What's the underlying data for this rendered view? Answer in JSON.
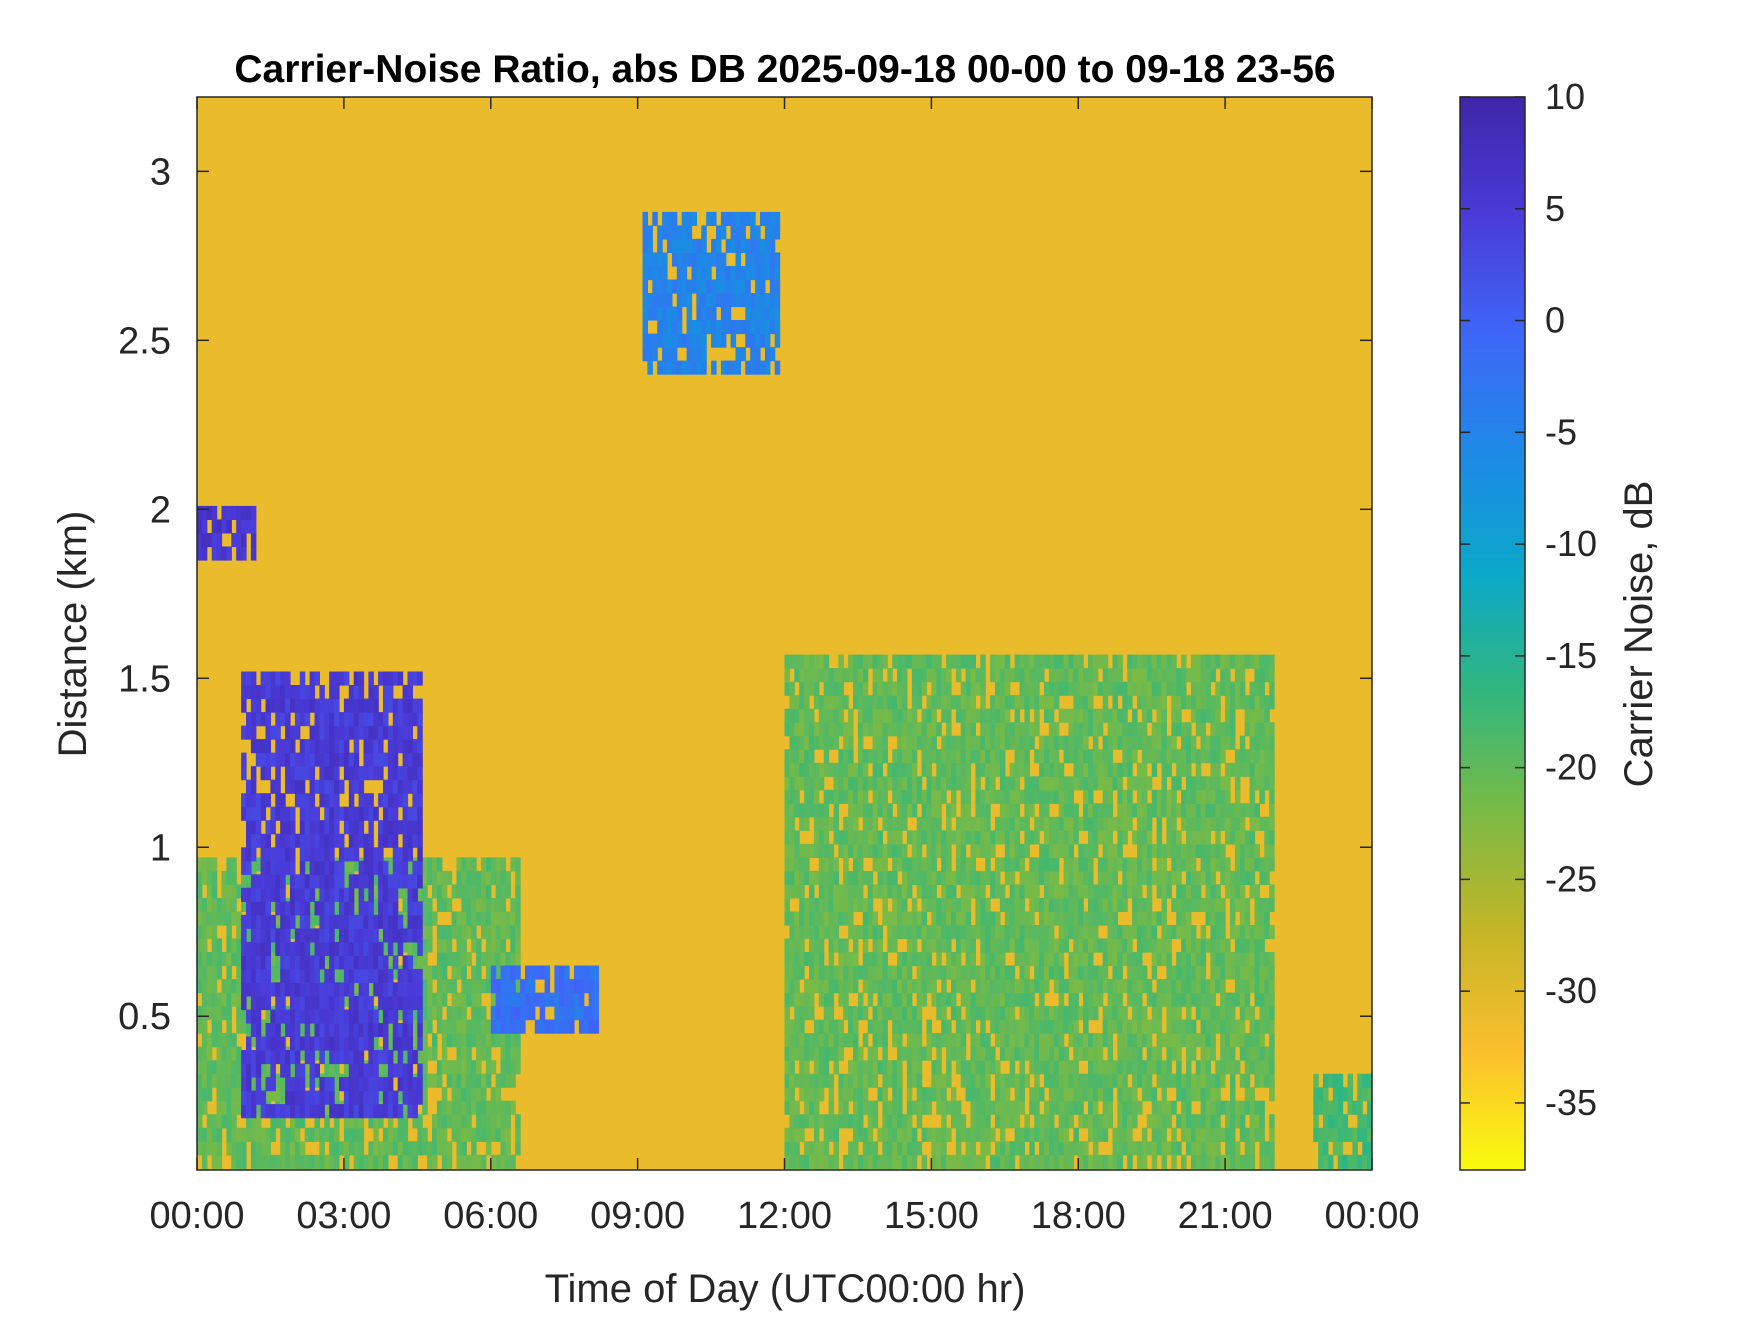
{
  "chart_data": {
    "type": "heatmap",
    "title": "Carrier-Noise Ratio, abs DB 2025-09-18 00-00 to 09-18 23-56",
    "xlabel": "Time of Day (UTC00:00 hr)",
    "ylabel": "Distance (km)",
    "x_ticks": [
      "00:00",
      "03:00",
      "06:00",
      "09:00",
      "12:00",
      "15:00",
      "18:00",
      "21:00",
      "00:00"
    ],
    "x_range_hours": [
      0,
      24
    ],
    "y_ticks": [
      0.5,
      1,
      1.5,
      2,
      2.5,
      3
    ],
    "y_tick_labels": [
      "0.5",
      "1",
      "1.5",
      "2",
      "2.5",
      "3"
    ],
    "y_range_km": [
      0.045,
      3.22
    ],
    "colorbar": {
      "label": "Carrier Noise, dB",
      "range": [
        -38,
        10
      ],
      "ticks": [
        10,
        5,
        0,
        -5,
        -10,
        -15,
        -20,
        -25,
        -30,
        -35
      ],
      "tick_labels": [
        "10",
        "5",
        "0",
        "-5",
        "-10",
        "-15",
        "-20",
        "-25",
        "-30",
        "-35"
      ],
      "colormap": "parula",
      "colors": [
        "#f9fb0e",
        "#fbbf2e",
        "#c5b526",
        "#7bba45",
        "#32b77d",
        "#0ba8c8",
        "#1d8ae6",
        "#3e67f7",
        "#4a3bd8",
        "#3e26a8"
      ]
    },
    "background_db": -31,
    "features": [
      {
        "label": "boundary layer low signal",
        "value_db": -20,
        "time_hours": [
          0,
          6.5
        ],
        "distance_km": [
          0.05,
          0.95
        ]
      },
      {
        "label": "strong echo band 1.9 km",
        "value_db": 6,
        "time_hours": [
          0,
          1.2
        ],
        "distance_km": [
          1.85,
          1.98
        ]
      },
      {
        "label": "descending strong layer",
        "value_db": 5,
        "time_hours": [
          0.9,
          4.6
        ],
        "distance_km": [
          0.2,
          1.5
        ]
      },
      {
        "label": "layer near 0.55 km",
        "value_db": -2,
        "time_hours": [
          6,
          8.1
        ],
        "distance_km": [
          0.45,
          0.62
        ]
      },
      {
        "label": "cloud at 2.7 km",
        "value_db": -5,
        "time_hours": [
          9.1,
          11.8
        ],
        "distance_km": [
          2.4,
          2.85
        ]
      },
      {
        "label": "daytime mixed layer",
        "value_db": -20,
        "time_hours": [
          12,
          22
        ],
        "distance_km": [
          0.05,
          1.55
        ]
      },
      {
        "label": "late low-level signal",
        "value_db": -18,
        "time_hours": [
          22.8,
          24
        ],
        "distance_km": [
          0.05,
          0.3
        ]
      }
    ]
  }
}
